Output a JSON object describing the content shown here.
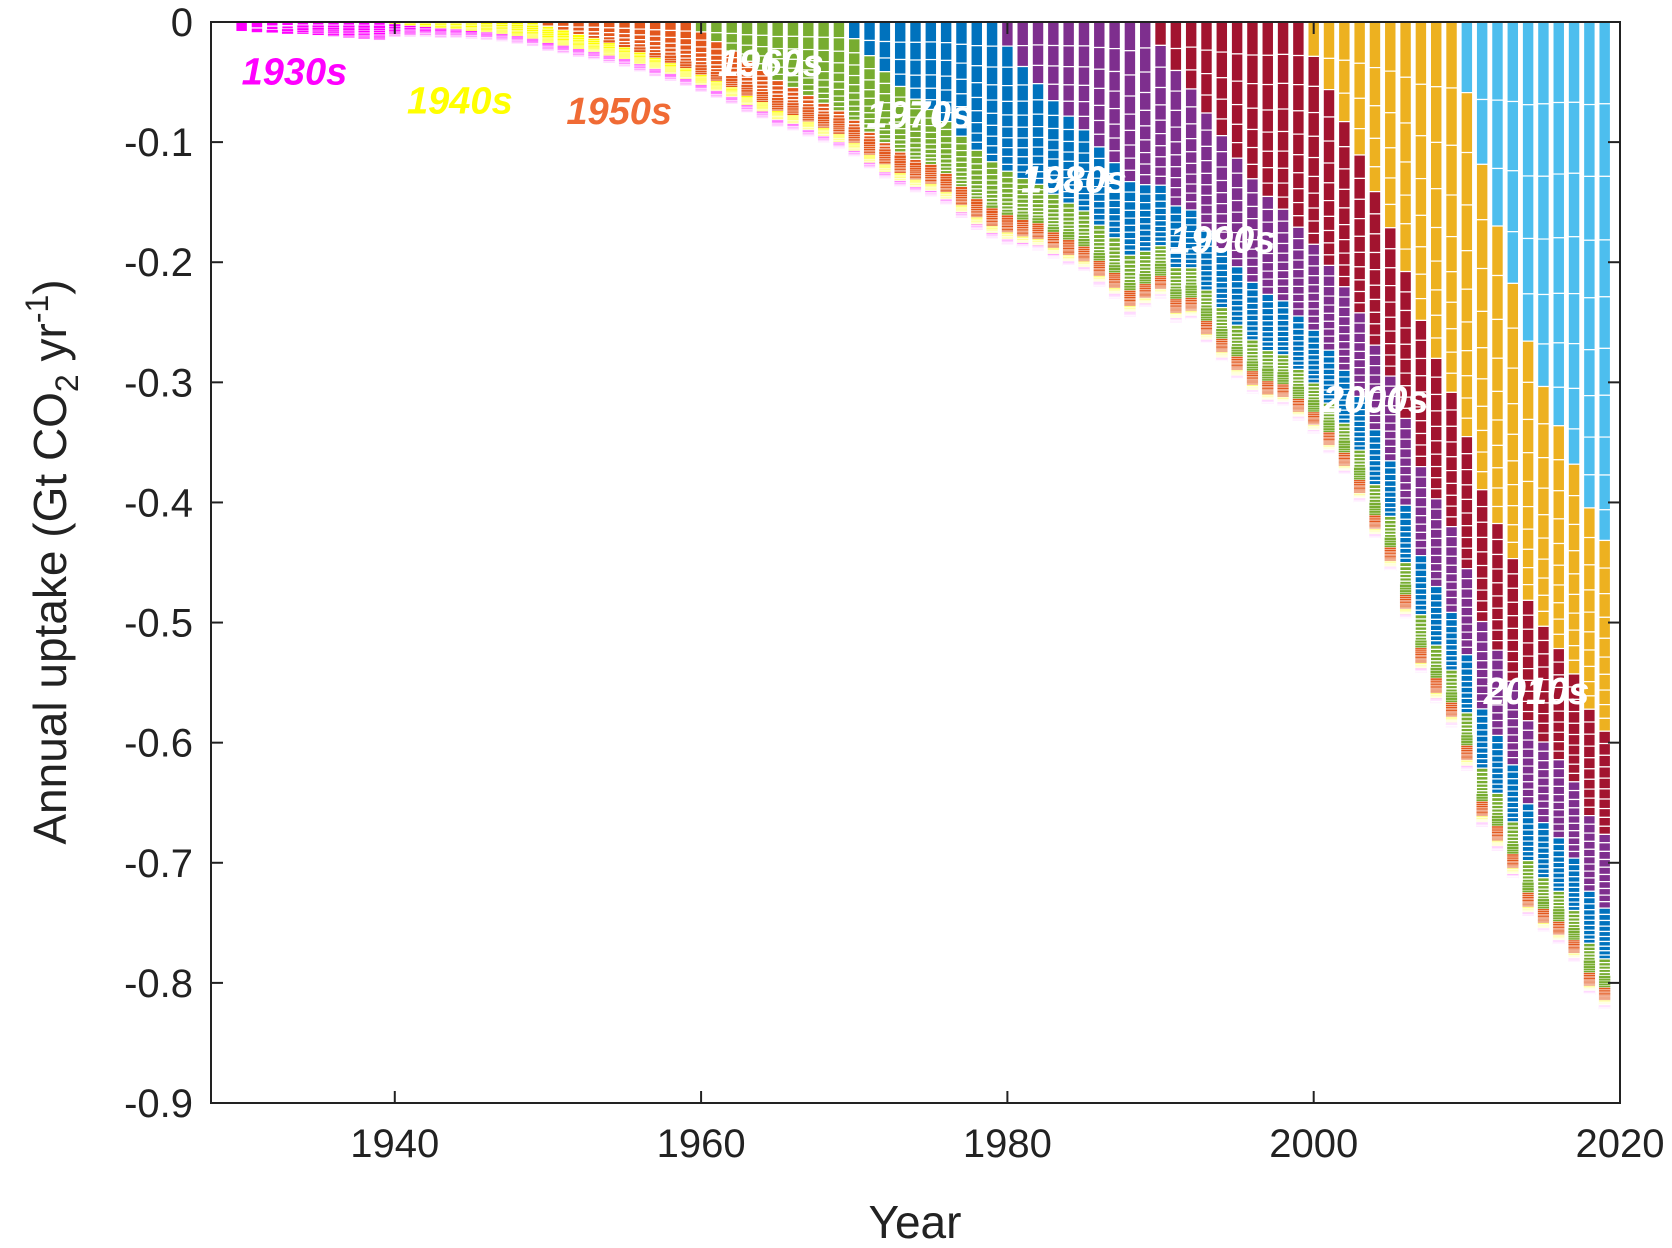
{
  "chart_data": {
    "type": "bar",
    "subtype": "stacked-negative-cohort",
    "title": "",
    "xlabel": "Year",
    "ylabel": "Annual uptake (Gt CO",
    "ylabel_sub": "2",
    "ylabel_mid": " yr",
    "ylabel_sup": "-1",
    "ylabel_end": ")",
    "xlim": [
      1928,
      2020
    ],
    "ylim": [
      -0.9,
      0
    ],
    "xticks": [
      1940,
      1960,
      1980,
      2000,
      2020
    ],
    "xtick_labels": [
      "1940",
      "1960",
      "1980",
      "2000",
      "2020"
    ],
    "yticks": [
      0,
      -0.1,
      -0.2,
      -0.3,
      -0.4,
      -0.5,
      -0.6,
      -0.7,
      -0.8,
      -0.9
    ],
    "ytick_labels": [
      "0",
      "-0.1",
      "-0.2",
      "-0.3",
      "-0.4",
      "-0.5",
      "-0.6",
      "-0.7",
      "-0.8",
      "-0.9"
    ],
    "grid": false,
    "x": [
      1930,
      1931,
      1932,
      1933,
      1934,
      1935,
      1936,
      1937,
      1938,
      1939,
      1940,
      1941,
      1942,
      1943,
      1944,
      1945,
      1946,
      1947,
      1948,
      1949,
      1950,
      1951,
      1952,
      1953,
      1954,
      1955,
      1956,
      1957,
      1958,
      1959,
      1960,
      1961,
      1962,
      1963,
      1964,
      1965,
      1966,
      1967,
      1968,
      1969,
      1970,
      1971,
      1972,
      1973,
      1974,
      1975,
      1976,
      1977,
      1978,
      1979,
      1980,
      1981,
      1982,
      1983,
      1984,
      1985,
      1986,
      1987,
      1988,
      1989,
      1990,
      1991,
      1992,
      1993,
      1994,
      1995,
      1996,
      1997,
      1998,
      1999,
      2000,
      2001,
      2002,
      2003,
      2004,
      2005,
      2006,
      2007,
      2008,
      2009,
      2010,
      2011,
      2012,
      2013,
      2014,
      2015,
      2016,
      2017,
      2018,
      2019
    ],
    "total_uptake": [
      -0.008,
      -0.009,
      -0.009,
      -0.01,
      -0.01,
      -0.011,
      -0.012,
      -0.013,
      -0.014,
      -0.015,
      -0.012,
      -0.012,
      -0.012,
      -0.013,
      -0.013,
      -0.014,
      -0.015,
      -0.016,
      -0.018,
      -0.02,
      -0.024,
      -0.026,
      -0.029,
      -0.031,
      -0.034,
      -0.037,
      -0.041,
      -0.045,
      -0.049,
      -0.053,
      -0.058,
      -0.063,
      -0.068,
      -0.075,
      -0.08,
      -0.087,
      -0.09,
      -0.095,
      -0.1,
      -0.105,
      -0.112,
      -0.122,
      -0.13,
      -0.137,
      -0.142,
      -0.145,
      -0.152,
      -0.163,
      -0.173,
      -0.18,
      -0.185,
      -0.188,
      -0.19,
      -0.197,
      -0.203,
      -0.208,
      -0.22,
      -0.23,
      -0.245,
      -0.238,
      -0.23,
      -0.25,
      -0.248,
      -0.268,
      -0.283,
      -0.298,
      -0.31,
      -0.318,
      -0.32,
      -0.332,
      -0.343,
      -0.36,
      -0.377,
      -0.4,
      -0.43,
      -0.457,
      -0.497,
      -0.542,
      -0.567,
      -0.587,
      -0.623,
      -0.67,
      -0.69,
      -0.713,
      -0.745,
      -0.758,
      -0.768,
      -0.783,
      -0.81,
      -0.822
    ],
    "series": [
      {
        "name": "1930s",
        "color": "#ff00ff",
        "start": 1930,
        "end": 1939
      },
      {
        "name": "1940s",
        "color": "#ffff00",
        "start": 1940,
        "end": 1949
      },
      {
        "name": "1950s",
        "color": "#e2571c",
        "start": 1950,
        "end": 1959
      },
      {
        "name": "1960s",
        "color": "#77ac30",
        "start": 1960,
        "end": 1969
      },
      {
        "name": "1970s",
        "color": "#0072bd",
        "start": 1970,
        "end": 1979
      },
      {
        "name": "1980s",
        "color": "#7e2f8e",
        "start": 1980,
        "end": 1989
      },
      {
        "name": "1990s",
        "color": "#a2142f",
        "start": 1990,
        "end": 1999
      },
      {
        "name": "2000s",
        "color": "#edb120",
        "start": 2000,
        "end": 2009
      },
      {
        "name": "2010s",
        "color": "#4dbeee",
        "start": 2010,
        "end": 2019
      }
    ],
    "annotations": [
      {
        "text": "1930s",
        "x": 1930.0,
        "y": -0.052,
        "color": "#ff00ff"
      },
      {
        "text": "1940s",
        "x": 1940.8,
        "y": -0.076,
        "color": "#ffff00"
      },
      {
        "text": "1950s",
        "x": 1951.2,
        "y": -0.085,
        "color": "#f06b35"
      },
      {
        "text": "1960s",
        "x": 1961.1,
        "y": -0.045,
        "color": "#ffffff"
      },
      {
        "text": "1970s",
        "x": 1970.8,
        "y": -0.088,
        "color": "#ffffff"
      },
      {
        "text": "1980s",
        "x": 1980.9,
        "y": -0.142,
        "color": "#ffffff"
      },
      {
        "text": "1990s",
        "x": 1990.6,
        "y": -0.192,
        "color": "#ffffff"
      },
      {
        "text": "2000s",
        "x": 2000.6,
        "y": -0.325,
        "color": "#ffffff"
      },
      {
        "text": "2010s",
        "x": 2011.1,
        "y": -0.568,
        "color": "#ffffff"
      }
    ]
  }
}
